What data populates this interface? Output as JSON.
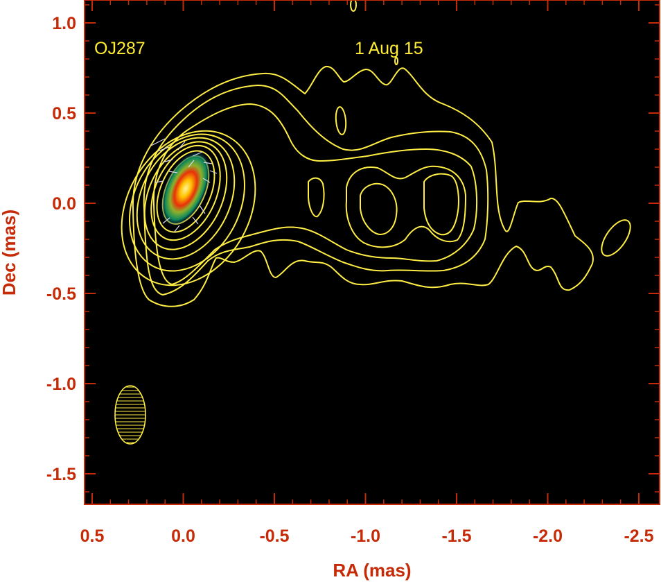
{
  "chart_data": {
    "type": "contour",
    "source": "OJ287",
    "date": "1 Aug 15",
    "xlabel": "RA (mas)",
    "ylabel": "Dec (mas)",
    "xlim": [
      0.5,
      -2.6
    ],
    "ylim": [
      -1.65,
      1.12
    ],
    "x_reversed": true,
    "xticks": [
      0.5,
      0.0,
      -0.5,
      -1.0,
      -1.5,
      -2.0,
      -2.5
    ],
    "xtick_labels": [
      "0.5",
      "0.0",
      "-0.5",
      "-1.0",
      "-1.5",
      "-2.0",
      "-2.5"
    ],
    "yticks": [
      1.0,
      0.5,
      0.0,
      -0.5,
      -1.0,
      -1.5
    ],
    "ytick_labels": [
      "1.0",
      "0.5",
      "0.0",
      "-0.5",
      "-1.0",
      "-1.5"
    ],
    "core": {
      "ra": -0.02,
      "dec": 0.06
    },
    "contour_levels_count": 11,
    "beam": {
      "ra": 0.29,
      "dec": -1.17,
      "major_mas": 0.32,
      "minor_mas": 0.15
    },
    "background": "black",
    "grid": false,
    "colors": {
      "axes": "#c62a06",
      "contours": "#ffee44",
      "annotation": "#ffee33",
      "map_background": "#000000"
    }
  }
}
